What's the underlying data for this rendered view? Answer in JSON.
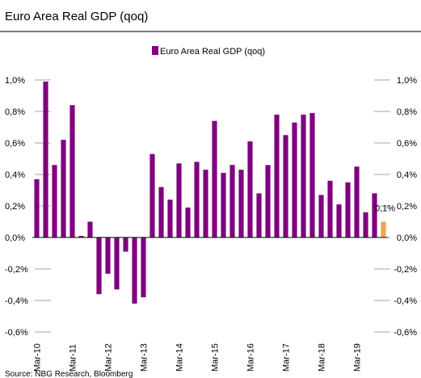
{
  "chart_data": {
    "type": "bar",
    "title": "Euro Area Real GDP (qoq)",
    "source": "Source: NBG Research, Bloomberg",
    "categories": [
      "Mar-10",
      null,
      null,
      null,
      "Mar-11",
      null,
      null,
      null,
      "Mar-12",
      null,
      null,
      null,
      "Mar-13",
      null,
      null,
      null,
      "Mar-14",
      null,
      null,
      null,
      "Mar-15",
      null,
      null,
      null,
      "Mar-16",
      null,
      null,
      null,
      "Mar-17",
      null,
      null,
      null,
      "Mar-18",
      null,
      null,
      null,
      "Mar-19",
      null,
      null,
      null
    ],
    "series": [
      {
        "name": "Euro Area Real GDP (qoq)",
        "color": "#800080",
        "values": [
          0.37,
          0.99,
          0.46,
          0.62,
          0.84,
          0.01,
          0.1,
          -0.36,
          -0.23,
          -0.33,
          -0.09,
          -0.42,
          -0.38,
          0.53,
          0.32,
          0.24,
          0.47,
          0.19,
          0.48,
          0.43,
          0.74,
          0.41,
          0.46,
          0.43,
          0.61,
          0.28,
          0.46,
          0.78,
          0.65,
          0.73,
          0.78,
          0.79,
          0.27,
          0.36,
          0.21,
          0.35,
          0.45,
          0.16,
          0.28,
          0.1
        ],
        "colors": [
          "#800080",
          "#800080",
          "#800080",
          "#800080",
          "#800080",
          "#800080",
          "#800080",
          "#800080",
          "#800080",
          "#800080",
          "#800080",
          "#800080",
          "#800080",
          "#800080",
          "#800080",
          "#800080",
          "#800080",
          "#800080",
          "#800080",
          "#800080",
          "#800080",
          "#800080",
          "#800080",
          "#800080",
          "#800080",
          "#800080",
          "#800080",
          "#800080",
          "#800080",
          "#800080",
          "#800080",
          "#800080",
          "#800080",
          "#800080",
          "#800080",
          "#800080",
          "#800080",
          "#800080",
          "#800080",
          "#f4a05a"
        ],
        "value_labels": [
          null,
          null,
          null,
          null,
          null,
          null,
          null,
          null,
          null,
          null,
          null,
          null,
          null,
          null,
          null,
          null,
          null,
          null,
          null,
          null,
          null,
          null,
          null,
          null,
          null,
          null,
          null,
          null,
          null,
          null,
          null,
          null,
          null,
          null,
          null,
          null,
          null,
          null,
          null,
          "0,1%"
        ]
      }
    ],
    "ylim": [
      -0.6,
      1.0
    ],
    "yticks": [
      {
        "value": -0.6,
        "label": "-0,6%"
      },
      {
        "value": -0.4,
        "label": "-0,4%"
      },
      {
        "value": -0.2,
        "label": "-0,2%"
      },
      {
        "value": 0,
        "label": "0,0%"
      },
      {
        "value": 0.2,
        "label": "0,2%"
      },
      {
        "value": 0.4,
        "label": "0,4%"
      },
      {
        "value": 0.6,
        "label": "0,6%"
      },
      {
        "value": 0.8,
        "label": "0,8%"
      },
      {
        "value": 1.0,
        "label": "1,0%"
      }
    ],
    "y2lim": [
      -0.6,
      1.0
    ],
    "y2ticks": [
      {
        "value": -0.6,
        "label": "-0,6%"
      },
      {
        "value": -0.4,
        "label": "-0,4%"
      },
      {
        "value": -0.2,
        "label": "-0,2%"
      },
      {
        "value": 0,
        "label": "0,0%"
      },
      {
        "value": 0.2,
        "label": "0,2%"
      },
      {
        "value": 0.4,
        "label": "0,4%"
      },
      {
        "value": 0.6,
        "label": "0,6%"
      },
      {
        "value": 0.8,
        "label": "0,8%"
      },
      {
        "value": 1.0,
        "label": "1,0%"
      }
    ],
    "legend": "top"
  }
}
